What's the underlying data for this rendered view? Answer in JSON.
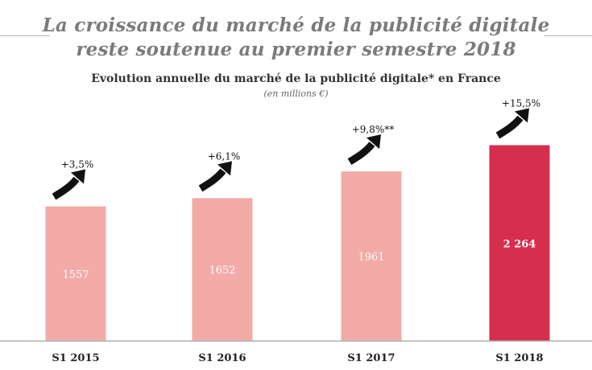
{
  "header": {
    "title_line1": "La croissance du marché de la publicité digitale",
    "title_line2": "reste soutenue au premier semestre 2018"
  },
  "chart_data": {
    "type": "bar",
    "title": "Evolution annuelle du marché de la publicité digitale* en France",
    "subtitle": "(en millions €)",
    "categories": [
      "S1 2015",
      "S1 2016",
      "S1 2017",
      "S1 2018"
    ],
    "values": [
      1557,
      1652,
      1961,
      2264
    ],
    "value_labels": [
      "1557",
      "1652",
      "1961",
      "2 264"
    ],
    "growth_labels": [
      "+3,5%",
      "+6,1%",
      "+9,8%**",
      "+15,5%"
    ],
    "colors": [
      "#f2aba7",
      "#f2aba7",
      "#f2aba7",
      "#d62f4e"
    ],
    "highlight_index": 3,
    "ylim": [
      0,
      2650
    ],
    "grid": false,
    "arrow_color": "#111111",
    "axis_color": "#b0b0b0"
  }
}
